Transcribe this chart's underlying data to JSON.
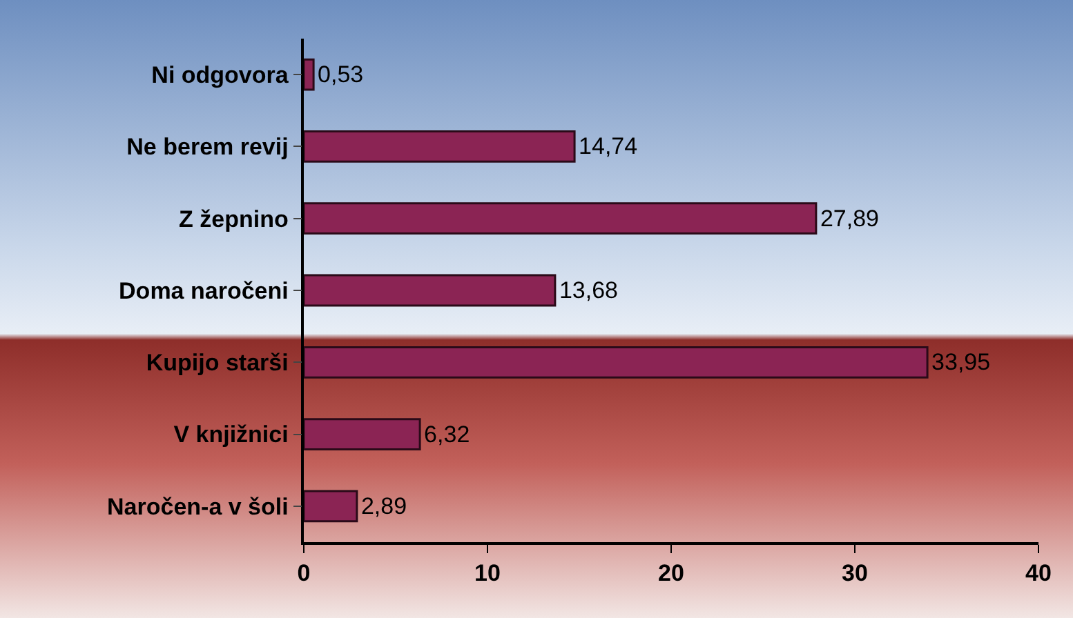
{
  "chart_data": {
    "type": "bar",
    "orientation": "horizontal",
    "categories": [
      "Ni odgovora",
      "Ne berem revij",
      "Z žepnino",
      "Doma naročeni",
      "Kupijo starši",
      "V knjižnici",
      "Naročen-a v šoli"
    ],
    "values": [
      0.53,
      14.74,
      27.89,
      13.68,
      33.95,
      6.32,
      2.89
    ],
    "value_labels": [
      "0,53",
      "14,74",
      "27,89",
      "13,68",
      "33,95",
      "6,32",
      "2,89"
    ],
    "color": "#8b2454",
    "xlim": [
      0,
      40
    ],
    "xticks": [
      0,
      10,
      20,
      30,
      40
    ],
    "grid": false
  }
}
